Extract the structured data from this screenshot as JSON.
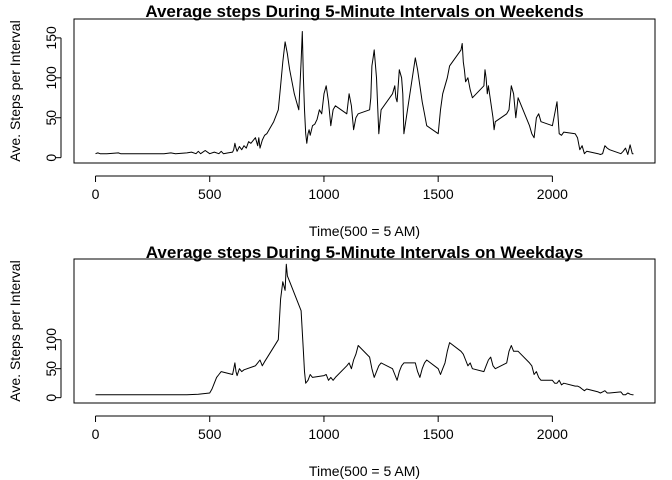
{
  "chart_data": [
    {
      "type": "line",
      "title": "Average steps During 5-Minute Intervals on Weekends",
      "xlabel": "Time(500 = 5 AM)",
      "ylabel": "Ave. Steps per Interval",
      "xlim": [
        0,
        2355
      ],
      "ylim": [
        0,
        167
      ],
      "xticks": [
        0,
        500,
        1000,
        1500,
        2000
      ],
      "yticks": [
        0,
        50,
        100,
        150
      ],
      "series": [
        {
          "x": [
            0,
            10,
            20,
            50,
            100,
            110,
            200,
            300,
            330,
            350,
            400,
            420,
            440,
            450,
            460,
            480,
            500,
            520,
            540,
            550,
            560,
            580,
            600,
            605,
            610,
            615,
            620,
            630,
            640,
            650,
            660,
            670,
            680,
            700,
            710,
            715,
            720,
            730,
            740,
            750,
            760,
            770,
            780,
            800,
            810,
            820,
            830,
            840,
            845,
            850,
            860,
            870,
            880,
            890,
            900,
            905,
            910,
            915,
            920,
            925,
            930,
            935,
            940,
            950,
            960,
            970,
            980,
            990,
            1000,
            1010,
            1020,
            1030,
            1040,
            1050,
            1100,
            1110,
            1120,
            1130,
            1140,
            1150,
            1200,
            1205,
            1210,
            1215,
            1220,
            1230,
            1240,
            1250,
            1300,
            1310,
            1315,
            1320,
            1330,
            1340,
            1345,
            1350,
            1400,
            1410,
            1420,
            1430,
            1440,
            1450,
            1500,
            1510,
            1520,
            1530,
            1540,
            1550,
            1600,
            1605,
            1610,
            1615,
            1620,
            1630,
            1640,
            1650,
            1700,
            1705,
            1710,
            1715,
            1720,
            1730,
            1740,
            1745,
            1750,
            1800,
            1810,
            1820,
            1830,
            1840,
            1850,
            1900,
            1910,
            1920,
            1930,
            1940,
            1950,
            2000,
            2010,
            2020,
            2030,
            2040,
            2050,
            2100,
            2110,
            2120,
            2130,
            2140,
            2150,
            2200,
            2210,
            2220,
            2230,
            2240,
            2250,
            2300,
            2310,
            2320,
            2330,
            2340,
            2350,
            2355
          ],
          "y": [
            5,
            6,
            5,
            5,
            6,
            5,
            5,
            5,
            6,
            5,
            6,
            7,
            5,
            8,
            5,
            9,
            5,
            7,
            5,
            8,
            5,
            6,
            7,
            10,
            18,
            12,
            8,
            14,
            10,
            15,
            12,
            20,
            18,
            25,
            15,
            25,
            12,
            22,
            28,
            30,
            35,
            40,
            45,
            60,
            90,
            120,
            145,
            130,
            120,
            110,
            95,
            80,
            70,
            60,
            120,
            158,
            100,
            60,
            30,
            18,
            30,
            35,
            28,
            40,
            42,
            48,
            60,
            55,
            80,
            90,
            70,
            40,
            60,
            65,
            55,
            80,
            65,
            35,
            50,
            55,
            60,
            75,
            115,
            125,
            135,
            100,
            30,
            60,
            80,
            90,
            75,
            70,
            110,
            100,
            80,
            30,
            125,
            110,
            90,
            70,
            55,
            40,
            30,
            60,
            80,
            90,
            100,
            115,
            135,
            143,
            120,
            110,
            95,
            100,
            85,
            75,
            90,
            110,
            100,
            80,
            90,
            70,
            50,
            35,
            45,
            55,
            60,
            90,
            80,
            50,
            75,
            40,
            30,
            25,
            50,
            55,
            45,
            40,
            55,
            70,
            30,
            28,
            32,
            30,
            25,
            10,
            15,
            5,
            8,
            5,
            4,
            5,
            15,
            12,
            10,
            5,
            8,
            12,
            4,
            16,
            5,
            5
          ]
        }
      ]
    },
    {
      "type": "line",
      "title": "Average steps During 5-Minute Intervals on Weekdays",
      "xlabel": "Time(500 = 5 AM)",
      "ylabel": "Ave. Steps per Interval",
      "xlim": [
        0,
        2355
      ],
      "ylim": [
        0,
        230
      ],
      "xticks": [
        0,
        500,
        1000,
        1500,
        2000
      ],
      "yticks": [
        0,
        50,
        100
      ],
      "series": [
        {
          "x": [
            0,
            50,
            100,
            200,
            300,
            400,
            450,
            500,
            510,
            520,
            530,
            540,
            550,
            600,
            610,
            615,
            620,
            630,
            640,
            650,
            700,
            710,
            720,
            730,
            740,
            750,
            800,
            810,
            820,
            830,
            835,
            840,
            850,
            900,
            910,
            915,
            920,
            930,
            940,
            950,
            1000,
            1010,
            1020,
            1030,
            1040,
            1050,
            1100,
            1110,
            1120,
            1130,
            1140,
            1150,
            1200,
            1210,
            1220,
            1230,
            1240,
            1250,
            1300,
            1310,
            1320,
            1330,
            1340,
            1350,
            1400,
            1410,
            1420,
            1430,
            1440,
            1450,
            1500,
            1510,
            1520,
            1530,
            1540,
            1550,
            1600,
            1610,
            1620,
            1630,
            1640,
            1650,
            1700,
            1710,
            1720,
            1730,
            1740,
            1750,
            1800,
            1810,
            1820,
            1830,
            1840,
            1850,
            1900,
            1910,
            1920,
            1930,
            1940,
            1950,
            2000,
            2010,
            2020,
            2030,
            2040,
            2050,
            2100,
            2110,
            2120,
            2130,
            2140,
            2150,
            2200,
            2210,
            2220,
            2230,
            2240,
            2250,
            2300,
            2310,
            2320,
            2330,
            2340,
            2350,
            2355
          ],
          "y": [
            5,
            5,
            5,
            5,
            5,
            5,
            6,
            8,
            15,
            25,
            35,
            40,
            45,
            40,
            60,
            45,
            38,
            50,
            45,
            48,
            55,
            60,
            65,
            55,
            62,
            68,
            100,
            170,
            200,
            185,
            230,
            210,
            200,
            150,
            80,
            45,
            25,
            30,
            40,
            35,
            38,
            40,
            30,
            35,
            30,
            35,
            55,
            60,
            50,
            65,
            75,
            90,
            70,
            50,
            35,
            45,
            55,
            60,
            50,
            40,
            30,
            45,
            55,
            60,
            60,
            45,
            35,
            50,
            60,
            65,
            50,
            40,
            50,
            60,
            80,
            95,
            80,
            75,
            65,
            55,
            60,
            50,
            45,
            55,
            65,
            70,
            55,
            50,
            60,
            80,
            90,
            80,
            80,
            80,
            60,
            55,
            40,
            45,
            35,
            30,
            30,
            25,
            25,
            30,
            22,
            25,
            20,
            20,
            18,
            15,
            12,
            15,
            10,
            8,
            10,
            12,
            8,
            8,
            10,
            5,
            5,
            8,
            6,
            5,
            5
          ]
        }
      ]
    }
  ]
}
